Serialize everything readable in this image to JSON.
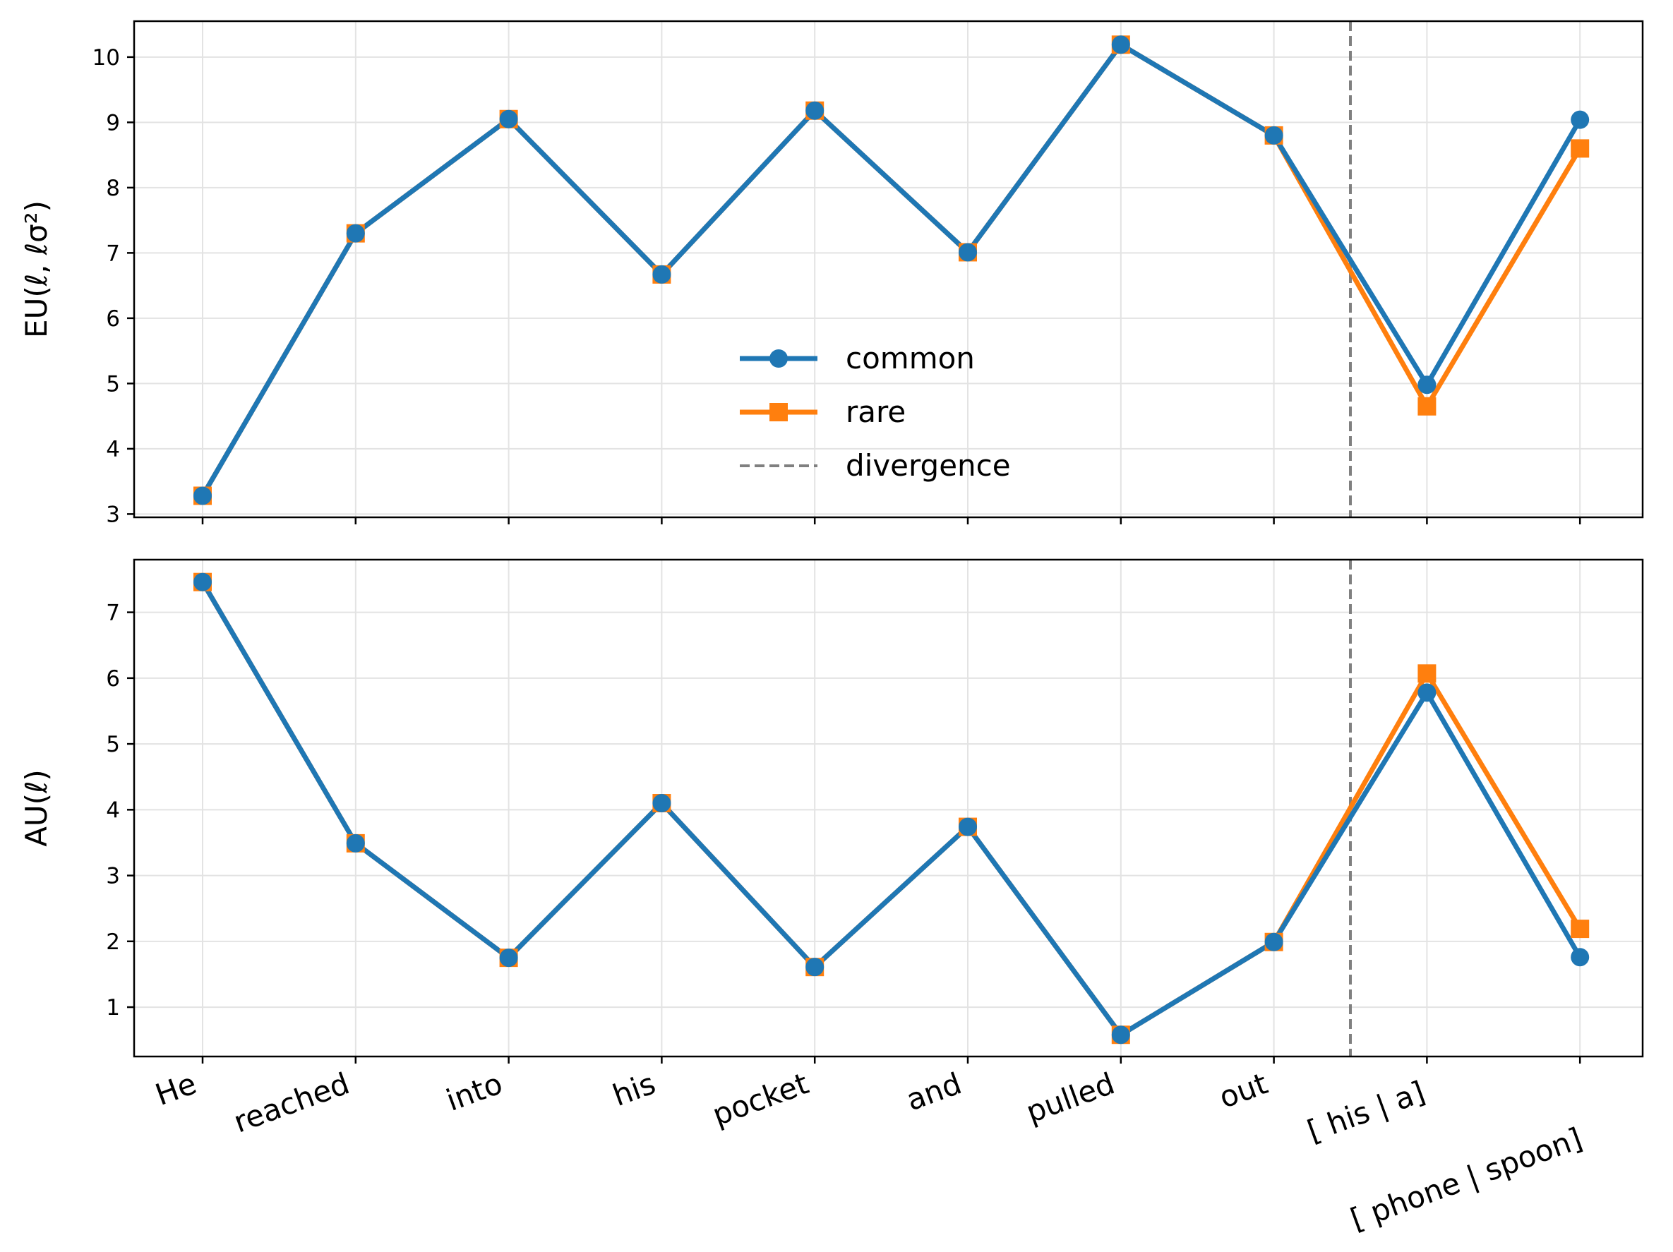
{
  "chart_data": [
    {
      "type": "line",
      "ylabel": "EU(ℓ, ℓσ²)",
      "ylim": [
        2.95,
        10.55
      ],
      "yticks": [
        3,
        4,
        5,
        6,
        7,
        8,
        9,
        10
      ],
      "grid": true,
      "divergence_x": 7.5,
      "legend_position": "center",
      "legend": [
        {
          "label": "common",
          "style": "line-circle",
          "color": "#1f77b4"
        },
        {
          "label": "rare",
          "style": "line-square",
          "color": "#ff7f0e"
        },
        {
          "label": "divergence",
          "style": "dashed",
          "color": "#808080"
        }
      ],
      "series": [
        {
          "name": "common",
          "color": "#1f77b4",
          "marker": "circle",
          "values": [
            3.28,
            7.3,
            9.05,
            6.67,
            9.18,
            7.01,
            10.19,
            8.8,
            4.98,
            9.04
          ]
        },
        {
          "name": "rare",
          "color": "#ff7f0e",
          "marker": "square",
          "values": [
            3.28,
            7.3,
            9.05,
            6.67,
            9.18,
            7.01,
            10.19,
            8.8,
            4.65,
            8.6
          ]
        }
      ]
    },
    {
      "type": "line",
      "ylabel": "AU(ℓ)",
      "ylim": [
        0.25,
        7.8
      ],
      "yticks": [
        1,
        2,
        3,
        4,
        5,
        6,
        7
      ],
      "grid": true,
      "divergence_x": 7.5,
      "series": [
        {
          "name": "common",
          "color": "#1f77b4",
          "marker": "circle",
          "values": [
            7.46,
            3.49,
            1.75,
            4.1,
            1.61,
            3.74,
            0.58,
            1.99,
            5.78,
            1.76
          ]
        },
        {
          "name": "rare",
          "color": "#ff7f0e",
          "marker": "square",
          "values": [
            7.46,
            3.49,
            1.75,
            4.1,
            1.61,
            3.74,
            0.58,
            1.99,
            6.07,
            2.19
          ]
        }
      ]
    }
  ],
  "x_categories": [
    "He",
    "reached",
    "into",
    "his",
    "pocket",
    "and",
    "pulled",
    "out",
    "[ his |  a]",
    "[ phone |  spoon]"
  ],
  "colors": {
    "common": "#1f77b4",
    "rare": "#ff7f0e",
    "divergence": "#808080"
  }
}
